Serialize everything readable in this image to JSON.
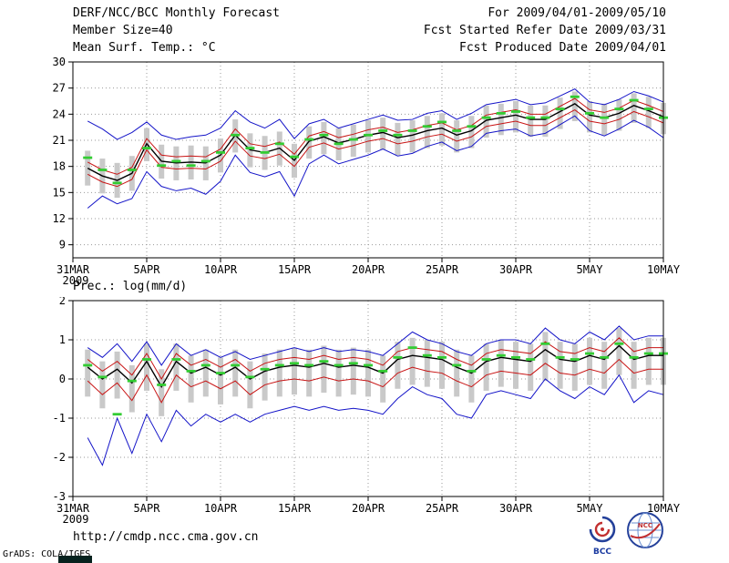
{
  "header": {
    "title": "DERF/NCC/BCC Monthly Forecast",
    "member_size": "Member Size=40",
    "for_range": "For 2009/04/01-2009/05/10",
    "fcst_started": "Fcst Started Refer Date 2009/03/31",
    "fcst_produced": "Fcst Produced Date 2009/04/01"
  },
  "footer": {
    "url": "http://cmdp.ncc.cma.gov.cn",
    "bcc_label": "BCC",
    "ncc_label": "NCC",
    "grads_credit": "GrADS: COLA/IGES"
  },
  "colors": {
    "envelope": "#1414c8",
    "spread": "#c81414",
    "mean": "#000000",
    "observation": "#33cc33",
    "bars": "#c9c9c9"
  },
  "chart_data": [
    {
      "type": "line",
      "title": "Mean Surf. Temp.: °C",
      "xlabel": "",
      "ylabel": "°C",
      "x_days_total": 40,
      "data_start_day": 1,
      "x_ticks": [
        {
          "day": 0,
          "label": "31MAR",
          "sub": "2009"
        },
        {
          "day": 5,
          "label": "5APR"
        },
        {
          "day": 10,
          "label": "10APR"
        },
        {
          "day": 15,
          "label": "15APR"
        },
        {
          "day": 20,
          "label": "20APR"
        },
        {
          "day": 25,
          "label": "25APR"
        },
        {
          "day": 30,
          "label": "30APR"
        },
        {
          "day": 35,
          "label": "5MAY"
        },
        {
          "day": 40,
          "label": "10MAY"
        }
      ],
      "ylim": [
        7.5,
        30
      ],
      "yticks": [
        9,
        12,
        15,
        18,
        21,
        24,
        27,
        30
      ],
      "grid": "dotted",
      "legend": "none",
      "series": [
        {
          "name": "ensemble-max",
          "color": "#1414c8",
          "values": [
            23.2,
            22.3,
            21.1,
            21.9,
            23.1,
            21.6,
            21.1,
            21.4,
            21.6,
            22.4,
            24.4,
            23.1,
            22.4,
            23.4,
            21.2,
            22.9,
            23.4,
            22.4,
            22.9,
            23.4,
            23.9,
            23.3,
            23.4,
            24.1,
            24.4,
            23.4,
            24.1,
            25.1,
            25.4,
            25.7,
            25.1,
            25.3,
            26.1,
            26.9,
            25.4,
            25.1,
            25.7,
            26.6,
            26.1,
            25.4
          ]
        },
        {
          "name": "mean-plus-spread",
          "color": "#c81414",
          "values": [
            18.5,
            17.6,
            17.1,
            17.9,
            21.2,
            19.3,
            19.1,
            19.2,
            19.1,
            20.0,
            22.3,
            20.6,
            20.3,
            20.8,
            19.4,
            21.5,
            22.0,
            21.3,
            21.7,
            22.2,
            22.5,
            21.9,
            22.2,
            22.7,
            23.0,
            22.2,
            22.7,
            23.9,
            24.2,
            24.5,
            24.0,
            24.0,
            24.9,
            25.8,
            24.5,
            24.2,
            24.7,
            25.6,
            25.0,
            24.3
          ]
        },
        {
          "name": "ensemble-mean",
          "color": "#000000",
          "values": [
            17.8,
            16.9,
            16.4,
            17.2,
            20.6,
            18.6,
            18.4,
            18.5,
            18.4,
            19.3,
            21.6,
            19.9,
            19.6,
            20.1,
            18.7,
            20.9,
            21.4,
            20.7,
            21.1,
            21.6,
            21.9,
            21.3,
            21.6,
            22.1,
            22.4,
            21.6,
            22.1,
            23.3,
            23.6,
            23.9,
            23.4,
            23.4,
            24.3,
            25.2,
            23.9,
            23.6,
            24.1,
            25.0,
            24.4,
            23.7
          ]
        },
        {
          "name": "mean-minus-spread",
          "color": "#c81414",
          "values": [
            17.1,
            16.2,
            15.7,
            16.5,
            19.9,
            17.9,
            17.7,
            17.8,
            17.7,
            18.6,
            20.9,
            19.2,
            18.9,
            19.4,
            18.0,
            20.2,
            20.7,
            20.0,
            20.4,
            20.9,
            21.2,
            20.6,
            20.9,
            21.4,
            21.7,
            20.9,
            21.4,
            22.6,
            22.9,
            23.2,
            22.7,
            22.7,
            23.6,
            24.5,
            23.2,
            22.9,
            23.4,
            24.3,
            23.7,
            23.0
          ]
        },
        {
          "name": "ensemble-min",
          "color": "#1414c8",
          "values": [
            13.2,
            14.6,
            13.7,
            14.3,
            17.4,
            15.7,
            15.2,
            15.5,
            14.8,
            16.3,
            19.3,
            17.3,
            16.8,
            17.4,
            14.6,
            18.3,
            19.3,
            18.3,
            18.8,
            19.3,
            20.0,
            19.2,
            19.5,
            20.3,
            20.8,
            19.8,
            20.3,
            21.8,
            22.1,
            22.3,
            21.5,
            21.8,
            22.8,
            23.8,
            22.1,
            21.5,
            22.3,
            23.3,
            22.5,
            21.3
          ]
        },
        {
          "name": "observation",
          "color": "#33cc33",
          "marker": "dash",
          "values": [
            19.0,
            17.6,
            16.1,
            17.6,
            20.1,
            18.1,
            18.6,
            18.1,
            18.6,
            19.6,
            21.6,
            20.1,
            19.6,
            20.6,
            19.1,
            21.1,
            21.6,
            20.6,
            21.1,
            21.6,
            22.1,
            21.6,
            22.1,
            22.6,
            23.1,
            22.1,
            22.6,
            23.6,
            24.1,
            24.3,
            23.6,
            23.6,
            24.6,
            26.0,
            24.1,
            23.6,
            24.6,
            25.6,
            24.6,
            23.6
          ]
        }
      ],
      "bars": {
        "name": "ensemble-spread-bar",
        "color": "#c9c9c9",
        "upper": [
          19.8,
          18.9,
          18.4,
          19.2,
          22.4,
          20.5,
          20.3,
          20.4,
          20.3,
          21.2,
          23.4,
          21.8,
          21.5,
          22.0,
          20.6,
          22.6,
          23.1,
          22.4,
          22.8,
          23.3,
          23.6,
          23.0,
          23.3,
          23.8,
          24.1,
          23.3,
          23.8,
          25.0,
          25.2,
          25.5,
          25.0,
          25.0,
          25.9,
          26.6,
          25.5,
          25.2,
          25.7,
          26.4,
          26.0,
          25.3
        ],
        "lower": [
          15.8,
          14.9,
          14.4,
          15.2,
          18.6,
          16.6,
          16.4,
          16.5,
          16.4,
          17.3,
          19.6,
          17.9,
          17.6,
          18.1,
          16.7,
          18.9,
          19.4,
          18.7,
          19.1,
          19.6,
          19.9,
          19.3,
          19.6,
          20.1,
          20.4,
          19.6,
          20.1,
          21.3,
          21.6,
          21.9,
          21.4,
          21.4,
          22.3,
          23.2,
          21.9,
          21.6,
          22.1,
          23.0,
          22.4,
          21.7
        ]
      }
    },
    {
      "type": "line",
      "title": "Prec.: log(mm/d)",
      "xlabel": "",
      "ylabel": "log(mm/d)",
      "x_days_total": 40,
      "data_start_day": 1,
      "x_ticks": [
        {
          "day": 0,
          "label": "31MAR",
          "sub": "2009"
        },
        {
          "day": 5,
          "label": "5APR"
        },
        {
          "day": 10,
          "label": "10APR"
        },
        {
          "day": 15,
          "label": "15APR"
        },
        {
          "day": 20,
          "label": "20APR"
        },
        {
          "day": 25,
          "label": "25APR"
        },
        {
          "day": 30,
          "label": "30APR"
        },
        {
          "day": 35,
          "label": "5MAY"
        },
        {
          "day": 40,
          "label": "10MAY"
        }
      ],
      "ylim": [
        -3,
        2
      ],
      "yticks": [
        -3,
        -2,
        -1,
        0,
        1,
        2
      ],
      "grid": "dotted",
      "legend": "none",
      "series": [
        {
          "name": "ensemble-max",
          "color": "#1414c8",
          "values": [
            0.8,
            0.55,
            0.9,
            0.45,
            0.95,
            0.35,
            0.9,
            0.6,
            0.75,
            0.55,
            0.7,
            0.5,
            0.6,
            0.7,
            0.8,
            0.7,
            0.8,
            0.7,
            0.75,
            0.7,
            0.6,
            0.9,
            1.2,
            1.0,
            0.9,
            0.7,
            0.6,
            0.9,
            1.0,
            1.0,
            0.9,
            1.3,
            1.0,
            0.9,
            1.2,
            1.0,
            1.35,
            1.0,
            1.1,
            1.1
          ]
        },
        {
          "name": "mean-plus-spread",
          "color": "#c81414",
          "values": [
            0.5,
            0.2,
            0.45,
            0.1,
            0.65,
            0.0,
            0.65,
            0.35,
            0.5,
            0.3,
            0.5,
            0.2,
            0.4,
            0.5,
            0.55,
            0.5,
            0.6,
            0.5,
            0.55,
            0.5,
            0.35,
            0.7,
            0.8,
            0.75,
            0.7,
            0.5,
            0.35,
            0.65,
            0.75,
            0.7,
            0.65,
            0.95,
            0.7,
            0.65,
            0.8,
            0.7,
            1.05,
            0.7,
            0.8,
            0.8
          ]
        },
        {
          "name": "ensemble-mean",
          "color": "#000000",
          "values": [
            0.3,
            0.0,
            0.25,
            -0.1,
            0.45,
            -0.2,
            0.45,
            0.15,
            0.3,
            0.1,
            0.3,
            0.0,
            0.2,
            0.3,
            0.35,
            0.3,
            0.4,
            0.3,
            0.35,
            0.3,
            0.15,
            0.5,
            0.6,
            0.55,
            0.5,
            0.3,
            0.15,
            0.45,
            0.55,
            0.5,
            0.45,
            0.75,
            0.5,
            0.45,
            0.6,
            0.5,
            0.85,
            0.5,
            0.6,
            0.6
          ]
        },
        {
          "name": "mean-minus-spread",
          "color": "#c81414",
          "values": [
            -0.05,
            -0.4,
            -0.1,
            -0.55,
            0.1,
            -0.6,
            0.1,
            -0.2,
            -0.05,
            -0.25,
            -0.05,
            -0.4,
            -0.15,
            -0.05,
            0.0,
            -0.05,
            0.05,
            -0.05,
            0.0,
            -0.05,
            -0.2,
            0.15,
            0.3,
            0.2,
            0.15,
            -0.05,
            -0.2,
            0.1,
            0.2,
            0.15,
            0.1,
            0.4,
            0.15,
            0.1,
            0.25,
            0.15,
            0.5,
            0.15,
            0.25,
            0.25
          ]
        },
        {
          "name": "ensemble-min",
          "color": "#1414c8",
          "values": [
            -1.5,
            -2.2,
            -1.0,
            -1.9,
            -0.9,
            -1.6,
            -0.8,
            -1.2,
            -0.9,
            -1.1,
            -0.9,
            -1.1,
            -0.9,
            -0.8,
            -0.7,
            -0.8,
            -0.7,
            -0.8,
            -0.75,
            -0.8,
            -0.9,
            -0.5,
            -0.2,
            -0.4,
            -0.5,
            -0.9,
            -1.0,
            -0.4,
            -0.3,
            -0.4,
            -0.5,
            0.0,
            -0.3,
            -0.5,
            -0.2,
            -0.4,
            0.1,
            -0.6,
            -0.3,
            -0.4
          ]
        },
        {
          "name": "observation",
          "color": "#33cc33",
          "marker": "dash",
          "values": [
            0.35,
            0.05,
            -0.9,
            -0.05,
            0.5,
            -0.15,
            0.5,
            0.2,
            0.35,
            0.15,
            0.35,
            0.05,
            0.25,
            0.35,
            0.4,
            0.35,
            0.45,
            0.35,
            0.4,
            0.35,
            0.2,
            0.55,
            0.8,
            0.6,
            0.55,
            0.35,
            0.2,
            0.5,
            0.6,
            0.55,
            0.5,
            0.9,
            0.55,
            0.5,
            0.65,
            0.55,
            0.9,
            0.55,
            0.65,
            0.65
          ]
        }
      ],
      "bars": {
        "name": "ensemble-spread-bar",
        "color": "#c9c9c9",
        "upper": [
          0.75,
          0.45,
          0.7,
          0.35,
          0.9,
          0.25,
          0.9,
          0.6,
          0.75,
          0.55,
          0.75,
          0.45,
          0.65,
          0.75,
          0.8,
          0.75,
          0.85,
          0.75,
          0.8,
          0.75,
          0.6,
          0.95,
          1.05,
          1.0,
          0.95,
          0.75,
          0.6,
          0.9,
          1.0,
          0.95,
          0.9,
          1.2,
          0.95,
          0.9,
          1.05,
          0.95,
          1.3,
          0.95,
          1.05,
          1.05
        ],
        "lower": [
          -0.45,
          -0.75,
          -0.5,
          -0.85,
          -0.3,
          -0.95,
          -0.3,
          -0.6,
          -0.45,
          -0.65,
          -0.45,
          -0.75,
          -0.55,
          -0.45,
          -0.4,
          -0.45,
          -0.35,
          -0.45,
          -0.4,
          -0.45,
          -0.6,
          -0.25,
          -0.15,
          -0.2,
          -0.25,
          -0.45,
          -0.6,
          -0.3,
          -0.2,
          -0.25,
          -0.3,
          -0.05,
          -0.25,
          -0.3,
          -0.15,
          -0.25,
          0.1,
          -0.25,
          -0.15,
          -0.15
        ]
      }
    }
  ]
}
